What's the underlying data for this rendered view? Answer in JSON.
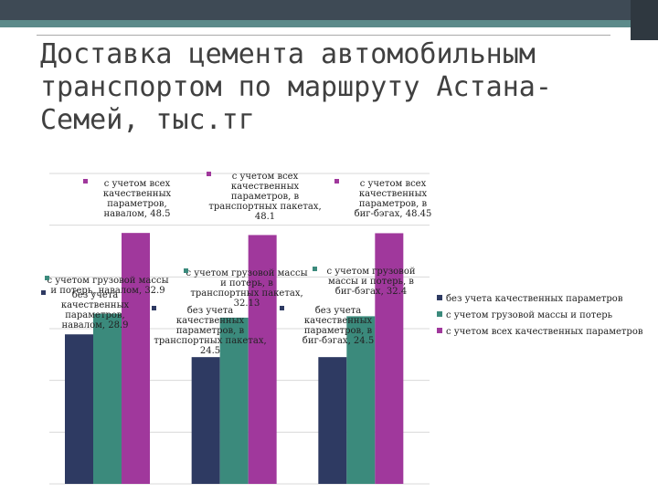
{
  "slide_title": "Доставка цемента автомобильным транспортом по маршруту Астана-Семей, тыс.тг",
  "colors": {
    "s1": "#2e3a62",
    "s2": "#3b8a7c",
    "s3": "#a0389c"
  },
  "chart_data": {
    "type": "bar",
    "categories": [
      "",
      "",
      ""
    ],
    "ylim": [
      0,
      60
    ],
    "legend_position": "right",
    "grid": true,
    "series": [
      {
        "name": "без учета качественных параметров",
        "values": [
          28.9,
          24.5,
          24.5
        ],
        "labels": [
          "без учета качественных параметров, навалом, 28.9",
          "без учета качественных параметров, в транспортных пакетах, 24.5",
          "без учета качественных параметров, в биг-бэгах, 24.5"
        ]
      },
      {
        "name": "с учетом грузовой массы и потерь",
        "values": [
          32.9,
          32.13,
          32.4
        ],
        "labels": [
          "с учетом грузовой массы и потерь, навалом, 32.9",
          "с учетом грузовой массы и потерь, в транспортных пакетах, 32.13",
          "с учетом грузовой массы и потерь, в биг-бэгах, 32.4"
        ]
      },
      {
        "name": "с учетом всех качественных параметров",
        "values": [
          48.5,
          48.1,
          48.45
        ],
        "labels": [
          "с учетом всех качественных параметров, навалом, 48.5",
          "с учетом всех качественных параметров, в транспортных пакетах, 48.1",
          "с учетом всех качественных параметров, в биг-бэгах, 48.45"
        ]
      }
    ]
  }
}
